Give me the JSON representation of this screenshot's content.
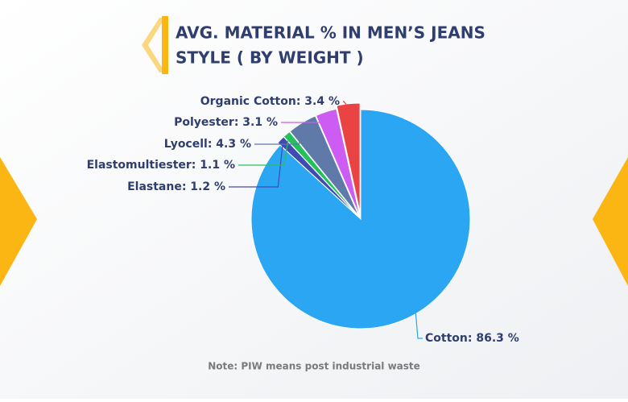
{
  "chart_data": {
    "type": "pie",
    "title_lines": [
      "AVG. MATERIAL % IN MEN’S JEANS",
      "STYLE ( BY WEIGHT )"
    ],
    "categories": [
      "Cotton",
      "Elastane",
      "Elastomultiester",
      "Lyocell",
      "Polyester",
      "Organic Cotton"
    ],
    "values": [
      86.3,
      1.2,
      1.1,
      4.3,
      3.1,
      3.4
    ],
    "value_labels": [
      "Cotton: 86.3 %",
      "Elastane: 1.2 %",
      "Elastomultiester: 1.1 %",
      "Lyocell: 4.3 %",
      "Polyester: 3.1 %",
      "Organic Cotton: 3.4 %"
    ],
    "colors": [
      "#2ba6f3",
      "#3f4bb3",
      "#23c15a",
      "#5f7aa8",
      "#cc5cf2",
      "#ea4343"
    ],
    "note": "Note: PIW means post industrial waste"
  }
}
